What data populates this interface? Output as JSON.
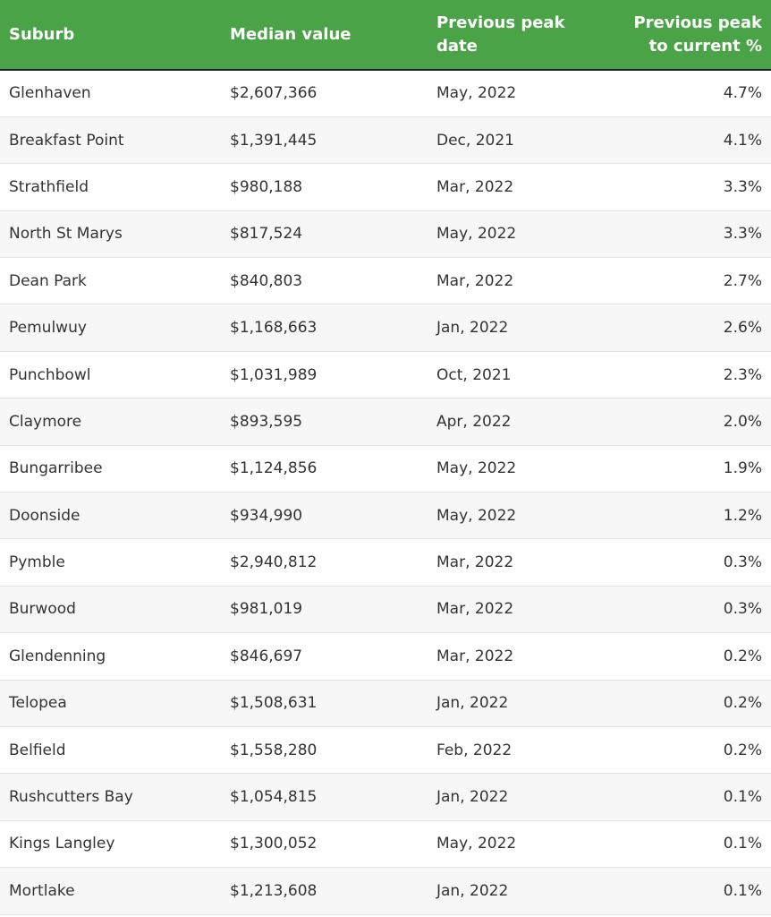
{
  "table": {
    "headers": {
      "suburb": "Suburb",
      "median_value": "Median value",
      "peak_date": "Previous peak date",
      "peak_to_current": "Previous peak to current %"
    },
    "rows": [
      {
        "suburb": "Glenhaven",
        "median_value": "$2,607,366",
        "peak_date": "May, 2022",
        "peak_to_current": "4.7%"
      },
      {
        "suburb": "Breakfast Point",
        "median_value": "$1,391,445",
        "peak_date": "Dec, 2021",
        "peak_to_current": "4.1%"
      },
      {
        "suburb": "Strathfield",
        "median_value": "$980,188",
        "peak_date": "Mar, 2022",
        "peak_to_current": "3.3%"
      },
      {
        "suburb": "North St Marys",
        "median_value": "$817,524",
        "peak_date": "May, 2022",
        "peak_to_current": "3.3%"
      },
      {
        "suburb": "Dean Park",
        "median_value": "$840,803",
        "peak_date": "Mar, 2022",
        "peak_to_current": "2.7%"
      },
      {
        "suburb": "Pemulwuy",
        "median_value": "$1,168,663",
        "peak_date": "Jan, 2022",
        "peak_to_current": "2.6%"
      },
      {
        "suburb": "Punchbowl",
        "median_value": "$1,031,989",
        "peak_date": "Oct, 2021",
        "peak_to_current": "2.3%"
      },
      {
        "suburb": "Claymore",
        "median_value": "$893,595",
        "peak_date": "Apr, 2022",
        "peak_to_current": "2.0%"
      },
      {
        "suburb": "Bungarribee",
        "median_value": "$1,124,856",
        "peak_date": "May, 2022",
        "peak_to_current": "1.9%"
      },
      {
        "suburb": "Doonside",
        "median_value": "$934,990",
        "peak_date": "May, 2022",
        "peak_to_current": "1.2%"
      },
      {
        "suburb": "Pymble",
        "median_value": "$2,940,812",
        "peak_date": "Mar, 2022",
        "peak_to_current": "0.3%"
      },
      {
        "suburb": "Burwood",
        "median_value": "$981,019",
        "peak_date": "Mar, 2022",
        "peak_to_current": "0.3%"
      },
      {
        "suburb": "Glendenning",
        "median_value": "$846,697",
        "peak_date": "Mar, 2022",
        "peak_to_current": "0.2%"
      },
      {
        "suburb": "Telopea",
        "median_value": "$1,508,631",
        "peak_date": "Jan, 2022",
        "peak_to_current": "0.2%"
      },
      {
        "suburb": "Belfield",
        "median_value": "$1,558,280",
        "peak_date": "Feb, 2022",
        "peak_to_current": "0.2%"
      },
      {
        "suburb": "Rushcutters Bay",
        "median_value": "$1,054,815",
        "peak_date": "Jan, 2022",
        "peak_to_current": "0.1%"
      },
      {
        "suburb": "Kings Langley",
        "median_value": "$1,300,052",
        "peak_date": "May, 2022",
        "peak_to_current": "0.1%"
      },
      {
        "suburb": "Mortlake",
        "median_value": "$1,213,608",
        "peak_date": "Jan, 2022",
        "peak_to_current": "0.1%"
      }
    ]
  },
  "colors": {
    "header_bg": "#4aa347",
    "header_text": "#ffffff",
    "row_alt_bg": "#f7f7f7"
  }
}
